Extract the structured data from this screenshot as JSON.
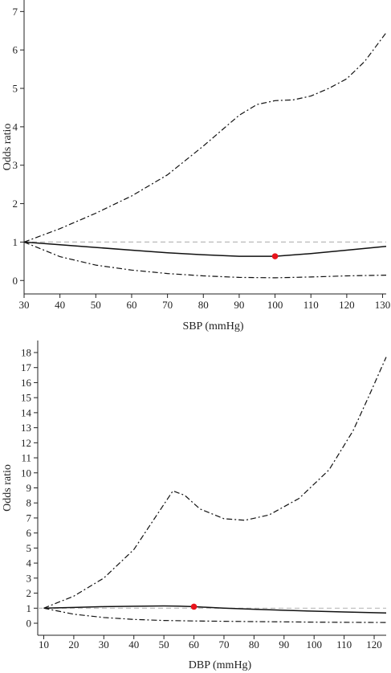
{
  "chart_data": [
    {
      "type": "line",
      "xlabel": "SBP (mmHg)",
      "ylabel": "Odds ratio",
      "xlim": [
        30,
        131
      ],
      "ylim": [
        -0.35,
        7.3
      ],
      "xticks": [
        30,
        40,
        50,
        60,
        70,
        80,
        90,
        100,
        110,
        120,
        130
      ],
      "yticks": [
        0,
        1,
        2,
        3,
        4,
        5,
        6,
        7
      ],
      "reference_line": 1,
      "reference_point": {
        "x": 100,
        "y": 0.63,
        "color": "#e8141c"
      },
      "series": [
        {
          "style": "solid",
          "x": [
            30,
            40,
            50,
            60,
            70,
            80,
            90,
            100,
            110,
            120,
            131
          ],
          "y": [
            1.0,
            0.93,
            0.86,
            0.79,
            0.72,
            0.67,
            0.63,
            0.63,
            0.7,
            0.79,
            0.89
          ]
        },
        {
          "style": "dashdot",
          "x": [
            30,
            40,
            50,
            60,
            70,
            80,
            90,
            95,
            100,
            105,
            110,
            115,
            120,
            125,
            131
          ],
          "y": [
            1.0,
            1.35,
            1.75,
            2.2,
            2.75,
            3.5,
            4.3,
            4.58,
            4.68,
            4.7,
            4.8,
            5.0,
            5.25,
            5.7,
            6.45
          ]
        },
        {
          "style": "dashdot",
          "x": [
            30,
            40,
            50,
            60,
            70,
            80,
            90,
            100,
            110,
            120,
            131
          ],
          "y": [
            1.0,
            0.62,
            0.4,
            0.27,
            0.18,
            0.12,
            0.08,
            0.07,
            0.09,
            0.12,
            0.14
          ]
        }
      ]
    },
    {
      "type": "line",
      "xlabel": "DBP (mmHg)",
      "ylabel": "Odds ratio",
      "xlim": [
        8,
        124
      ],
      "ylim": [
        -0.8,
        18.8
      ],
      "xticks": [
        10,
        20,
        30,
        40,
        50,
        60,
        70,
        80,
        90,
        100,
        110,
        120
      ],
      "yticks": [
        0,
        1,
        2,
        3,
        4,
        5,
        6,
        7,
        8,
        9,
        10,
        11,
        12,
        13,
        14,
        15,
        16,
        17,
        18
      ],
      "reference_line": 1,
      "reference_point": {
        "x": 60,
        "y": 1.1,
        "color": "#e8141c"
      },
      "series": [
        {
          "style": "solid",
          "x": [
            10,
            20,
            30,
            40,
            50,
            55,
            60,
            70,
            80,
            90,
            100,
            110,
            124
          ],
          "y": [
            1.0,
            1.05,
            1.1,
            1.13,
            1.15,
            1.14,
            1.1,
            1.0,
            0.93,
            0.86,
            0.8,
            0.75,
            0.68
          ]
        },
        {
          "style": "dashdot",
          "x": [
            10,
            20,
            30,
            40,
            45,
            50,
            53,
            57,
            62,
            70,
            77,
            85,
            95,
            105,
            113,
            118,
            124
          ],
          "y": [
            1.0,
            1.8,
            3.0,
            4.9,
            6.4,
            7.9,
            8.8,
            8.5,
            7.6,
            6.95,
            6.85,
            7.2,
            8.3,
            10.2,
            12.8,
            15.0,
            17.7
          ]
        },
        {
          "style": "dashdot",
          "x": [
            10,
            20,
            30,
            40,
            50,
            60,
            70,
            80,
            90,
            100,
            110,
            124
          ],
          "y": [
            1.0,
            0.6,
            0.38,
            0.25,
            0.18,
            0.15,
            0.13,
            0.11,
            0.09,
            0.07,
            0.06,
            0.05
          ]
        }
      ]
    }
  ]
}
